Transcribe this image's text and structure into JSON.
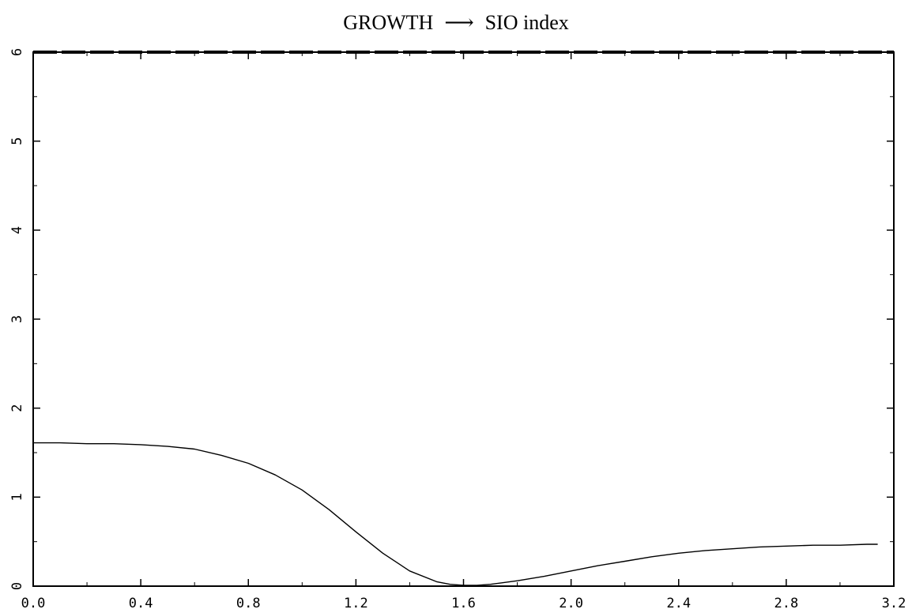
{
  "chart_data": {
    "type": "line",
    "title": {
      "left": "GROWTH",
      "arrow": "⟶",
      "right": "SIO index"
    },
    "xlabel": "",
    "ylabel": "",
    "xlim": [
      0.0,
      3.2
    ],
    "ylim": [
      0,
      6
    ],
    "x_ticks": [
      "0.0",
      "0.4",
      "0.8",
      "1.2",
      "1.6",
      "2.0",
      "2.4",
      "2.8",
      "3.2"
    ],
    "y_ticks": [
      "0",
      "1",
      "2",
      "3",
      "4",
      "5",
      "6"
    ],
    "grid": false,
    "series": [
      {
        "x": [
          0.0,
          0.1,
          0.2,
          0.3,
          0.4,
          0.5,
          0.6,
          0.7,
          0.8,
          0.9,
          1.0,
          1.1,
          1.2,
          1.3,
          1.4,
          1.5,
          1.55,
          1.6,
          1.65,
          1.7,
          1.8,
          1.9,
          2.0,
          2.1,
          2.2,
          2.3,
          2.4,
          2.5,
          2.6,
          2.7,
          2.8,
          2.9,
          3.0,
          3.1,
          3.14
        ],
        "y": [
          1.61,
          1.61,
          1.6,
          1.6,
          1.59,
          1.57,
          1.54,
          1.47,
          1.38,
          1.25,
          1.08,
          0.86,
          0.61,
          0.37,
          0.17,
          0.05,
          0.02,
          0.01,
          0.01,
          0.02,
          0.06,
          0.11,
          0.17,
          0.23,
          0.28,
          0.33,
          0.37,
          0.4,
          0.42,
          0.44,
          0.45,
          0.46,
          0.46,
          0.47,
          0.47
        ]
      }
    ],
    "colors": {
      "line": "#000000",
      "axes": "#000000",
      "background": "#ffffff"
    }
  }
}
